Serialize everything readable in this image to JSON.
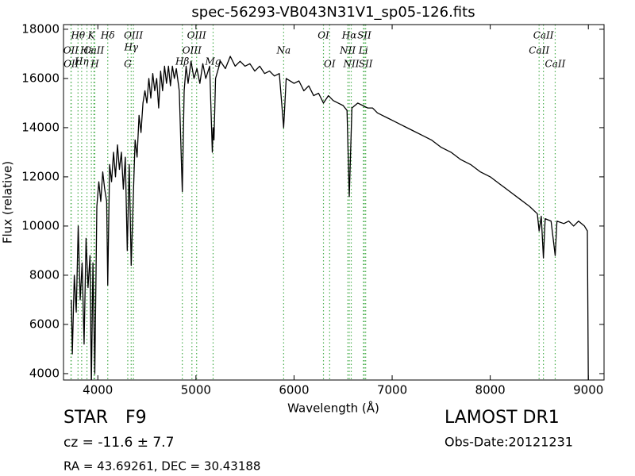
{
  "chart_data": {
    "type": "line",
    "title": "spec-56293-VB043N31V1_sp05-126.fits",
    "x_label": "Wavelength (Å)",
    "y_label": "Flux (relative)",
    "xlim": [
      3650,
      9160
    ],
    "ylim": [
      3740,
      18190
    ],
    "xticks": [
      4000,
      5000,
      6000,
      7000,
      8000,
      9000
    ],
    "yticks": [
      4000,
      6000,
      8000,
      10000,
      12000,
      14000,
      16000,
      18000
    ],
    "x": [
      3730,
      3740,
      3760,
      3780,
      3800,
      3820,
      3840,
      3860,
      3880,
      3900,
      3920,
      3934,
      3950,
      3969,
      3990,
      4010,
      4030,
      4050,
      4070,
      4090,
      4101,
      4120,
      4140,
      4160,
      4180,
      4200,
      4220,
      4240,
      4260,
      4280,
      4300,
      4320,
      4340,
      4360,
      4380,
      4400,
      4420,
      4440,
      4460,
      4480,
      4500,
      4520,
      4540,
      4560,
      4580,
      4600,
      4620,
      4640,
      4660,
      4680,
      4700,
      4720,
      4740,
      4760,
      4780,
      4800,
      4830,
      4861,
      4880,
      4900,
      4920,
      4950,
      4980,
      5010,
      5040,
      5070,
      5100,
      5140,
      5167,
      5175,
      5184,
      5200,
      5250,
      5300,
      5350,
      5400,
      5450,
      5500,
      5550,
      5600,
      5650,
      5700,
      5750,
      5800,
      5850,
      5894,
      5920,
      6000,
      6050,
      6100,
      6150,
      6200,
      6250,
      6300,
      6350,
      6400,
      6450,
      6500,
      6540,
      6563,
      6590,
      6650,
      6700,
      6750,
      6800,
      6850,
      6900,
      6950,
      7000,
      7100,
      7200,
      7300,
      7400,
      7500,
      7600,
      7700,
      7800,
      7900,
      8000,
      8100,
      8200,
      8300,
      8400,
      8480,
      8498,
      8520,
      8542,
      8560,
      8620,
      8662,
      8680,
      8750,
      8800,
      8850,
      8900,
      8960,
      8990,
      9000
    ],
    "series": [
      {
        "color": "#000000",
        "values": [
          7000,
          4800,
          8000,
          6500,
          10000,
          7000,
          8500,
          5200,
          9500,
          7500,
          8800,
          3500,
          8500,
          4000,
          10800,
          11800,
          11000,
          12200,
          11500,
          11000,
          7600,
          12500,
          11800,
          13000,
          12000,
          13300,
          12300,
          13000,
          11500,
          12800,
          9000,
          12500,
          8400,
          11000,
          13500,
          12800,
          14500,
          13800,
          15000,
          15500,
          15000,
          16000,
          15200,
          16200,
          15500,
          16000,
          14800,
          16300,
          15500,
          16500,
          15800,
          16500,
          15700,
          16500,
          16000,
          16400,
          15500,
          11400,
          15500,
          16500,
          15800,
          16700,
          16000,
          16400,
          15800,
          16600,
          16000,
          16500,
          13000,
          14000,
          13500,
          16000,
          16700,
          16400,
          16900,
          16500,
          16700,
          16500,
          16600,
          16300,
          16500,
          16200,
          16300,
          16100,
          16200,
          14000,
          16000,
          15800,
          15900,
          15500,
          15700,
          15300,
          15400,
          15000,
          15300,
          15100,
          15000,
          14900,
          14700,
          11200,
          14800,
          15000,
          14900,
          14800,
          14800,
          14600,
          14500,
          14400,
          14300,
          14100,
          13900,
          13700,
          13500,
          13200,
          13000,
          12700,
          12500,
          12200,
          12000,
          11700,
          11400,
          11100,
          10800,
          10500,
          9800,
          10400,
          8700,
          10300,
          10200,
          8800,
          10200,
          10100,
          10200,
          10000,
          10200,
          10000,
          9800,
          3500
        ]
      }
    ],
    "line_color": "#4caf50",
    "lines": [
      {
        "label": "OII",
        "wavelength": 3726
      },
      {
        "label": "OII",
        "wavelength": 3729
      },
      {
        "label": "Hθ",
        "wavelength": 3798
      },
      {
        "label": "Hη",
        "wavelength": 3835
      },
      {
        "label": "Hε",
        "wavelength": 3889
      },
      {
        "label": "K",
        "wavelength": 3934
      },
      {
        "label": "CaII",
        "wavelength": 3960
      },
      {
        "label": "H",
        "wavelength": 3969
      },
      {
        "label": "Hδ",
        "wavelength": 4101
      },
      {
        "label": "G",
        "wavelength": 4305
      },
      {
        "label": "Hγ",
        "wavelength": 4340
      },
      {
        "label": "OIII",
        "wavelength": 4363
      },
      {
        "label": "Hβ",
        "wavelength": 4861
      },
      {
        "label": "OIII",
        "wavelength": 4959
      },
      {
        "label": "OIII",
        "wavelength": 5007
      },
      {
        "label": "Mg",
        "wavelength": 5175
      },
      {
        "label": "Na",
        "wavelength": 5894
      },
      {
        "label": "OI",
        "wavelength": 6300
      },
      {
        "label": "OI",
        "wavelength": 6363
      },
      {
        "label": "NII",
        "wavelength": 6548
      },
      {
        "label": "Hα",
        "wavelength": 6563
      },
      {
        "label": "NII",
        "wavelength": 6583
      },
      {
        "label": "Li",
        "wavelength": 6707
      },
      {
        "label": "SII",
        "wavelength": 6716
      },
      {
        "label": "SII",
        "wavelength": 6730
      },
      {
        "label": "CaII",
        "wavelength": 8498
      },
      {
        "label": "CaII",
        "wavelength": 8542
      },
      {
        "label": "CaII",
        "wavelength": 8662
      }
    ],
    "object_class": "STAR",
    "subclass": "F9",
    "survey": "LAMOST DR1",
    "redshift": "cz = -11.6 ± 7.7",
    "obs_date": "Obs-Date:20121231",
    "coordinates": "RA = 43.69261, DEC = 30.43188"
  }
}
